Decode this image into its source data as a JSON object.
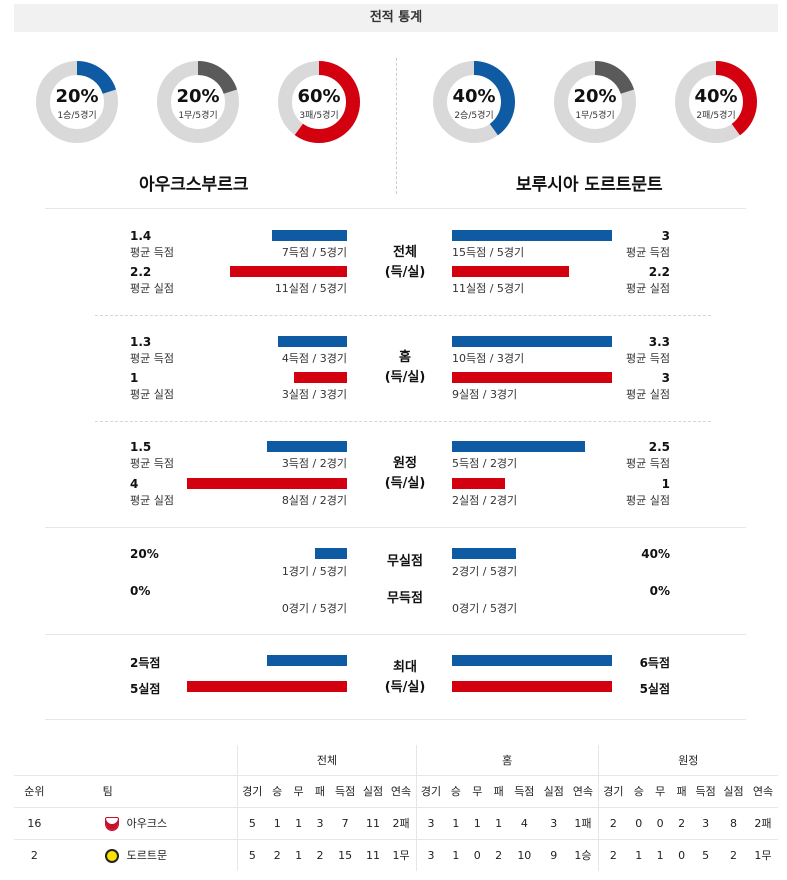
{
  "header": {
    "title": "전적 통계"
  },
  "donuts": [
    {
      "pct": "20%",
      "sub": "1승/5경기",
      "fraction": 0.2,
      "color": "#0e5ba3"
    },
    {
      "pct": "20%",
      "sub": "1무/5경기",
      "fraction": 0.2,
      "color": "#5a5a5a"
    },
    {
      "pct": "60%",
      "sub": "3패/5경기",
      "fraction": 0.6,
      "color": "#d3000f"
    },
    {
      "pct": "40%",
      "sub": "2승/5경기",
      "fraction": 0.4,
      "color": "#0e5ba3"
    },
    {
      "pct": "20%",
      "sub": "1무/5경기",
      "fraction": 0.2,
      "color": "#5a5a5a"
    },
    {
      "pct": "40%",
      "sub": "2패/5경기",
      "fraction": 0.4,
      "color": "#d3000f"
    }
  ],
  "teams": {
    "left": "아우크스부르크",
    "right": "보루시아 도르트문트"
  },
  "sections": {
    "overall": {
      "title": [
        "전체",
        "(득/실)"
      ],
      "left": {
        "scored": {
          "value": "1.4",
          "label": "평균 득점",
          "caption": "7득점 / 5경기",
          "fraction": 0.47
        },
        "conceded": {
          "value": "2.2",
          "label": "평균 실점",
          "caption": "11실점 / 5경기",
          "fraction": 0.73
        }
      },
      "right": {
        "scored": {
          "value": "3",
          "label": "평균 득점",
          "caption": "15득점 / 5경기",
          "fraction": 1.0
        },
        "conceded": {
          "value": "2.2",
          "label": "평균 실점",
          "caption": "11실점 / 5경기",
          "fraction": 0.73
        }
      }
    },
    "home": {
      "title": [
        "홈",
        "(득/실)"
      ],
      "left": {
        "scored": {
          "value": "1.3",
          "label": "평균 득점",
          "caption": "4득점 / 3경기",
          "fraction": 0.43
        },
        "conceded": {
          "value": "1",
          "label": "평균 실점",
          "caption": "3실점 / 3경기",
          "fraction": 0.33
        }
      },
      "right": {
        "scored": {
          "value": "3.3",
          "label": "평균 득점",
          "caption": "10득점 / 3경기",
          "fraction": 1.0
        },
        "conceded": {
          "value": "3",
          "label": "평균 실점",
          "caption": "9실점 / 3경기",
          "fraction": 1.0
        }
      }
    },
    "away": {
      "title": [
        "원정",
        "(득/실)"
      ],
      "left": {
        "scored": {
          "value": "1.5",
          "label": "평균 득점",
          "caption": "3득점 / 2경기",
          "fraction": 0.5
        },
        "conceded": {
          "value": "4",
          "label": "평균 실점",
          "caption": "8실점 / 2경기",
          "fraction": 1.0
        }
      },
      "right": {
        "scored": {
          "value": "2.5",
          "label": "평균 득점",
          "caption": "5득점 / 2경기",
          "fraction": 0.83
        },
        "conceded": {
          "value": "1",
          "label": "평균 실점",
          "caption": "2실점 / 2경기",
          "fraction": 0.33
        }
      }
    },
    "clean": {
      "cleansheet_title": "무실점",
      "noscore_title": "무득점",
      "left": {
        "cleansheet": {
          "value": "20%",
          "caption": "1경기 / 5경기",
          "fraction": 0.2
        },
        "noscore": {
          "value": "0%",
          "caption": "0경기 / 5경기",
          "fraction": 0
        }
      },
      "right": {
        "cleansheet": {
          "value": "40%",
          "caption": "2경기 / 5경기",
          "fraction": 0.4
        },
        "noscore": {
          "value": "0%",
          "caption": "0경기 / 5경기",
          "fraction": 0
        }
      }
    },
    "max": {
      "title": [
        "최대",
        "(득/실)"
      ],
      "left": {
        "scored": "2득점",
        "conceded": "5실점",
        "scored_fraction": 0.5,
        "conceded_fraction": 1.0
      },
      "right": {
        "scored": "6득점",
        "conceded": "5실점",
        "scored_fraction": 1.0,
        "conceded_fraction": 1.0
      }
    }
  },
  "standings": {
    "group_headers": [
      "전체",
      "홈",
      "원정"
    ],
    "rank_header": "순위",
    "team_header": "팀",
    "sub_headers": [
      "경기",
      "승",
      "무",
      "패",
      "득점",
      "실점",
      "연속"
    ],
    "rows": [
      {
        "rank": "16",
        "team": "아우크스",
        "logo_color": "#c8102e",
        "overall": [
          "5",
          "1",
          "1",
          "3",
          "7",
          "11",
          "2패"
        ],
        "home": [
          "3",
          "1",
          "1",
          "1",
          "4",
          "3",
          "1패"
        ],
        "away": [
          "2",
          "0",
          "0",
          "2",
          "3",
          "8",
          "2패"
        ]
      },
      {
        "rank": "2",
        "team": "도르트문",
        "logo_color": "#fde100",
        "overall": [
          "5",
          "2",
          "1",
          "2",
          "15",
          "11",
          "1무"
        ],
        "home": [
          "3",
          "1",
          "0",
          "2",
          "10",
          "9",
          "1승"
        ],
        "away": [
          "2",
          "1",
          "1",
          "0",
          "5",
          "2",
          "1무"
        ]
      }
    ]
  }
}
